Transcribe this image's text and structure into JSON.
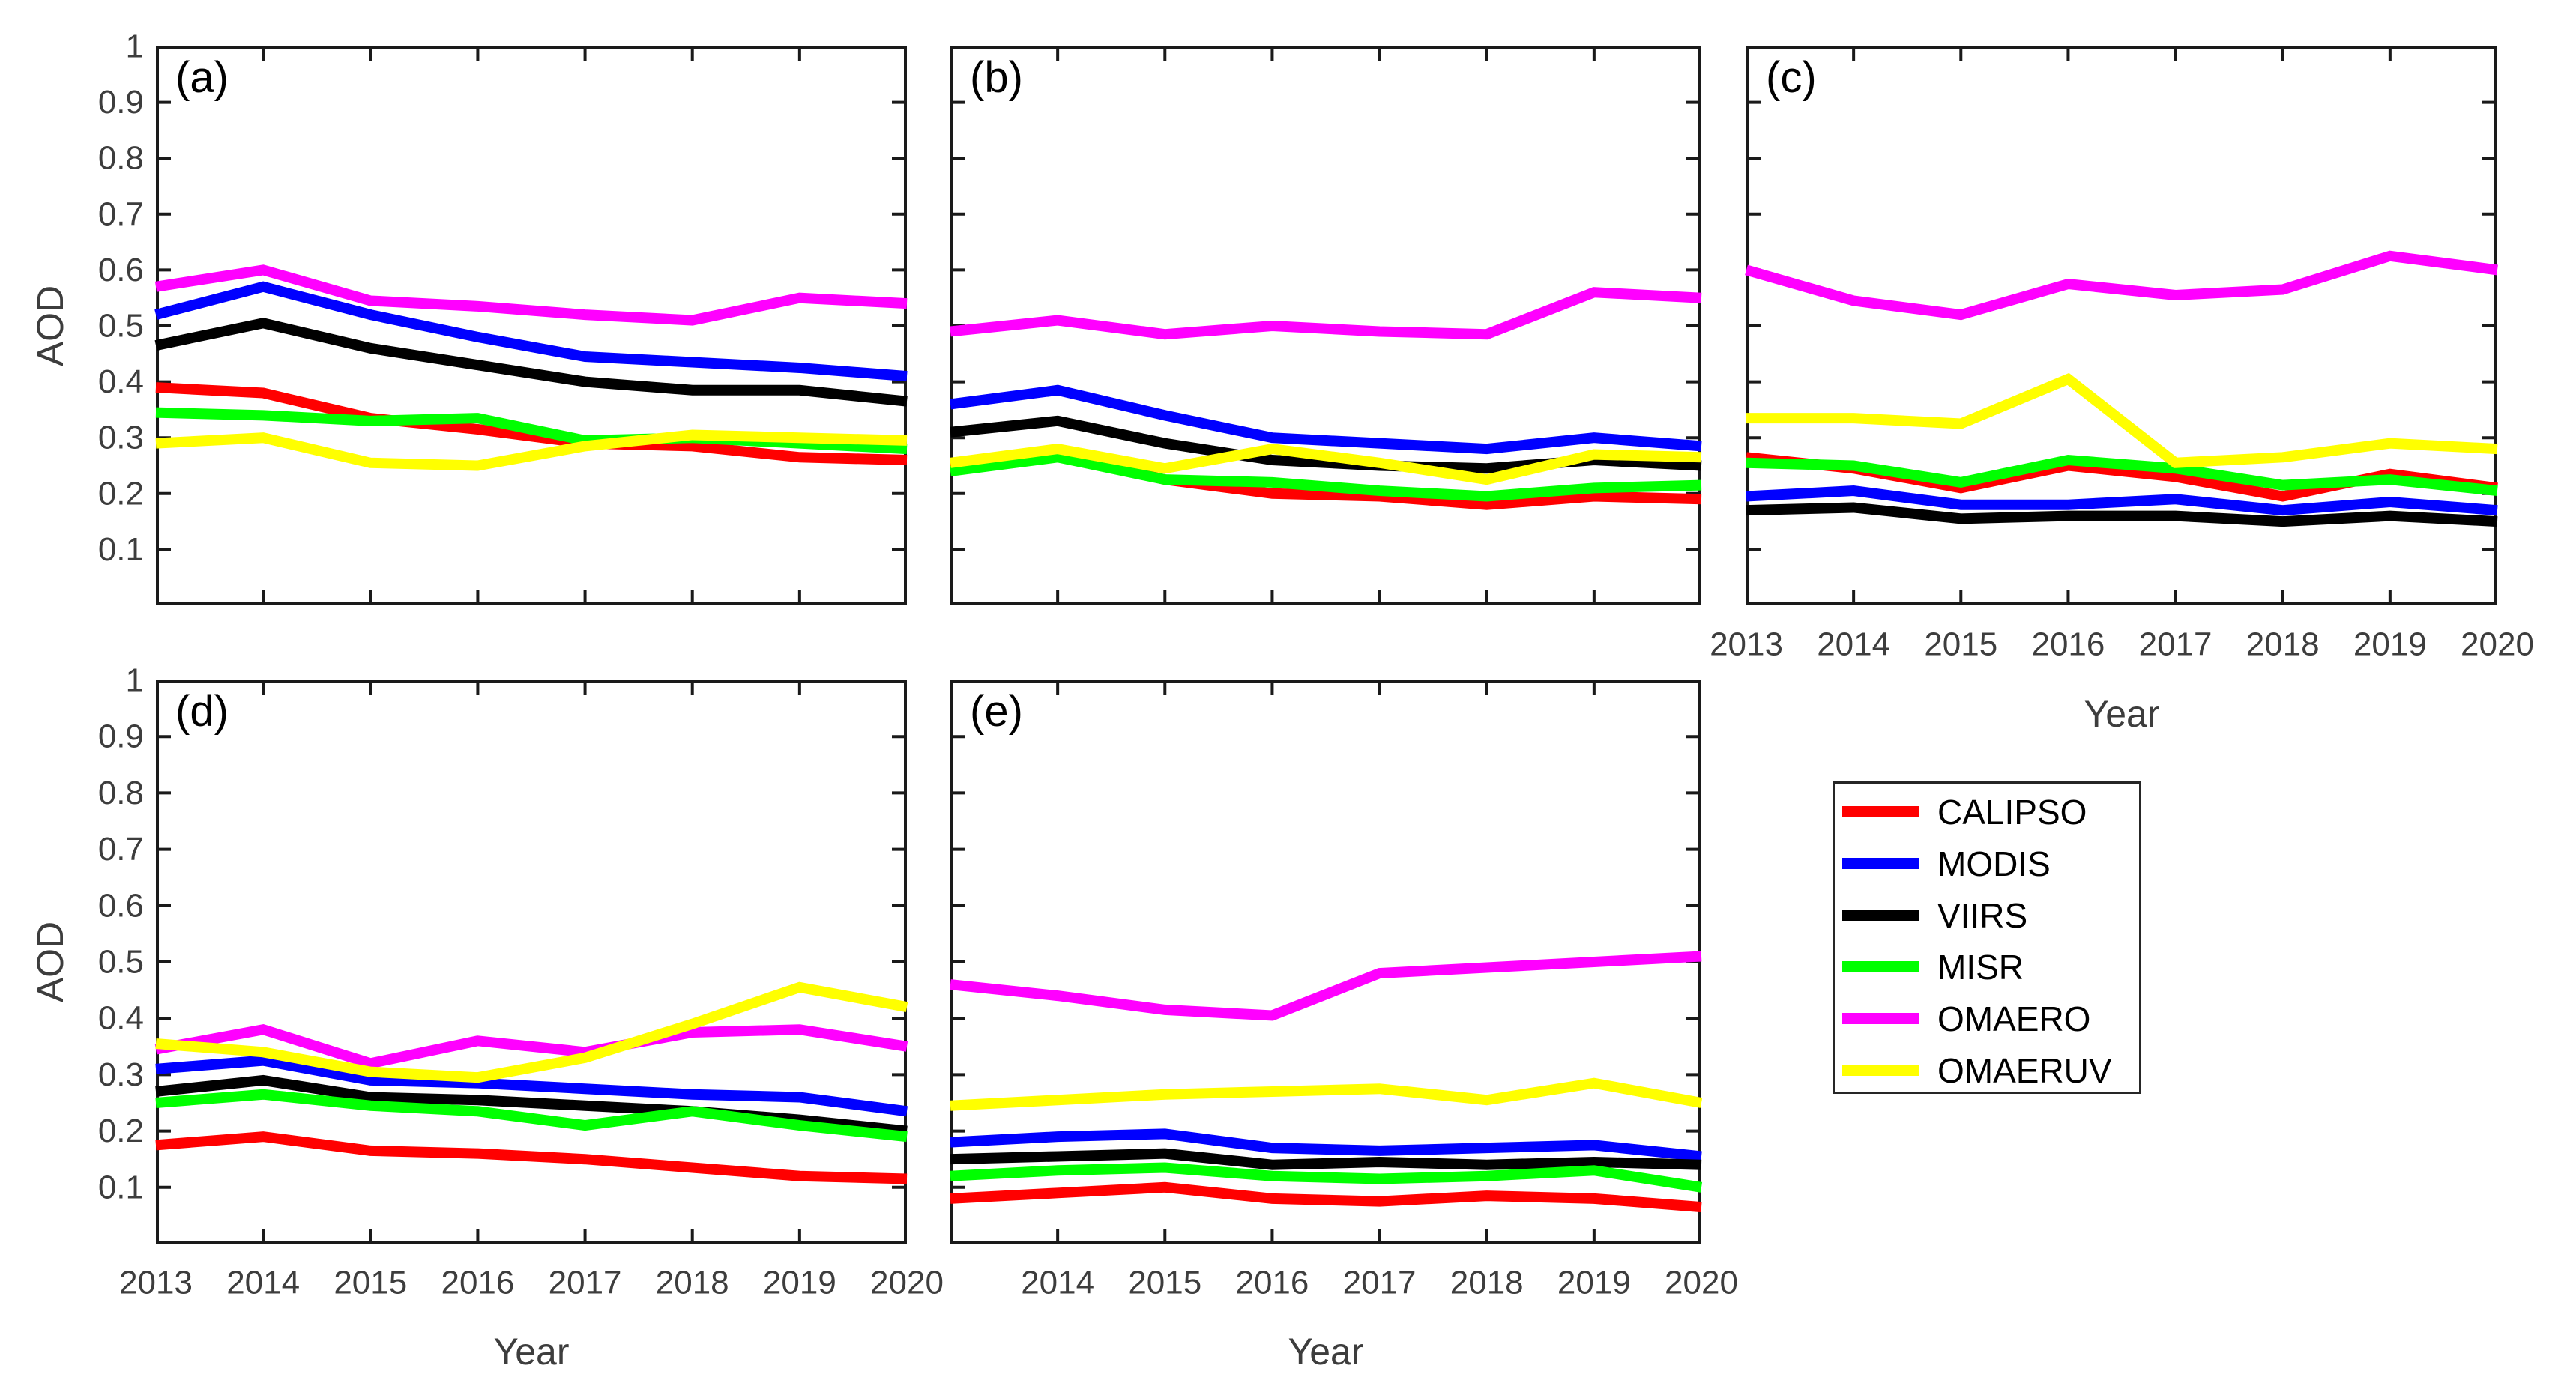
{
  "figure": {
    "ylabel": "AOD",
    "xlabel": "Year",
    "y_tick_labels": [
      "1",
      "0.9",
      "0.8",
      "0.7",
      "0.6",
      "0.5",
      "0.4",
      "0.3",
      "0.2",
      "0.1"
    ],
    "axis_color": "#1a1a1a",
    "tick_label_color": "#3d3d3d",
    "background": "#ffffff"
  },
  "legend": {
    "border_color": "#262626",
    "items": [
      {
        "label": "CALIPSO",
        "color": "#ff0000"
      },
      {
        "label": "MODIS",
        "color": "#0000ff"
      },
      {
        "label": "VIIRS",
        "color": "#000000"
      },
      {
        "label": "MISR",
        "color": "#00ff00"
      },
      {
        "label": "OMAERO",
        "color": "#ff00ff"
      },
      {
        "label": "OMAERUV",
        "color": "#ffff00"
      }
    ]
  },
  "chart_data": [
    {
      "type": "line",
      "panel_label": "(a)",
      "x": [
        2013,
        2014,
        2015,
        2016,
        2017,
        2018,
        2019,
        2020
      ],
      "xlim": [
        2013,
        2020
      ],
      "ylim": [
        0,
        1
      ],
      "grid": false,
      "ytick_labels_visible": true,
      "xlabel_visible": false,
      "x_tick_labels": [],
      "series": [
        {
          "name": "CALIPSO",
          "color": "#ff0000",
          "values": [
            0.39,
            0.38,
            0.335,
            0.315,
            0.29,
            0.285,
            0.265,
            0.26
          ]
        },
        {
          "name": "MODIS",
          "color": "#0000ff",
          "values": [
            0.52,
            0.57,
            0.52,
            0.48,
            0.445,
            0.435,
            0.425,
            0.41
          ]
        },
        {
          "name": "VIIRS",
          "color": "#000000",
          "values": [
            0.465,
            0.505,
            0.46,
            0.43,
            0.4,
            0.385,
            0.385,
            0.365
          ]
        },
        {
          "name": "MISR",
          "color": "#00ff00",
          "values": [
            0.345,
            0.34,
            0.33,
            0.335,
            0.295,
            0.3,
            0.29,
            0.28
          ]
        },
        {
          "name": "OMAERO",
          "color": "#ff00ff",
          "values": [
            0.57,
            0.6,
            0.545,
            0.535,
            0.52,
            0.51,
            0.55,
            0.54
          ]
        },
        {
          "name": "OMAERUV",
          "color": "#ffff00",
          "values": [
            0.29,
            0.3,
            0.255,
            0.25,
            0.285,
            0.305,
            0.3,
            0.295
          ]
        }
      ]
    },
    {
      "type": "line",
      "panel_label": "(b)",
      "x": [
        2013,
        2014,
        2015,
        2016,
        2017,
        2018,
        2019,
        2020
      ],
      "xlim": [
        2013,
        2020
      ],
      "ylim": [
        0,
        1
      ],
      "grid": false,
      "ytick_labels_visible": false,
      "xlabel_visible": false,
      "x_tick_labels": [],
      "series": [
        {
          "name": "CALIPSO",
          "color": "#ff0000",
          "values": [
            0.25,
            0.27,
            0.225,
            0.2,
            0.195,
            0.18,
            0.195,
            0.19
          ]
        },
        {
          "name": "MODIS",
          "color": "#0000ff",
          "values": [
            0.36,
            0.385,
            0.34,
            0.3,
            0.29,
            0.28,
            0.3,
            0.285
          ]
        },
        {
          "name": "VIIRS",
          "color": "#000000",
          "values": [
            0.31,
            0.33,
            0.29,
            0.26,
            0.25,
            0.245,
            0.26,
            0.25
          ]
        },
        {
          "name": "MISR",
          "color": "#00ff00",
          "values": [
            0.24,
            0.265,
            0.225,
            0.22,
            0.205,
            0.195,
            0.21,
            0.215
          ]
        },
        {
          "name": "OMAERO",
          "color": "#ff00ff",
          "values": [
            0.49,
            0.51,
            0.485,
            0.5,
            0.49,
            0.485,
            0.56,
            0.55
          ]
        },
        {
          "name": "OMAERUV",
          "color": "#ffff00",
          "values": [
            0.255,
            0.28,
            0.245,
            0.28,
            0.255,
            0.225,
            0.27,
            0.265
          ]
        }
      ]
    },
    {
      "type": "line",
      "panel_label": "(c)",
      "x": [
        2013,
        2014,
        2015,
        2016,
        2017,
        2018,
        2019,
        2020
      ],
      "xlim": [
        2013,
        2020
      ],
      "ylim": [
        0,
        1
      ],
      "grid": false,
      "ytick_labels_visible": false,
      "xlabel_visible": true,
      "x_tick_labels": [
        "2013",
        "2014",
        "2015",
        "2016",
        "2017",
        "2018",
        "2019",
        "2020"
      ],
      "series": [
        {
          "name": "CALIPSO",
          "color": "#ff0000",
          "values": [
            0.265,
            0.245,
            0.21,
            0.25,
            0.23,
            0.195,
            0.235,
            0.21
          ]
        },
        {
          "name": "MODIS",
          "color": "#0000ff",
          "values": [
            0.195,
            0.205,
            0.18,
            0.18,
            0.19,
            0.17,
            0.185,
            0.17
          ]
        },
        {
          "name": "VIIRS",
          "color": "#000000",
          "values": [
            0.17,
            0.175,
            0.155,
            0.16,
            0.16,
            0.15,
            0.16,
            0.15
          ]
        },
        {
          "name": "MISR",
          "color": "#00ff00",
          "values": [
            0.255,
            0.25,
            0.22,
            0.26,
            0.245,
            0.215,
            0.225,
            0.205
          ]
        },
        {
          "name": "OMAERO",
          "color": "#ff00ff",
          "values": [
            0.6,
            0.545,
            0.52,
            0.575,
            0.555,
            0.565,
            0.625,
            0.6
          ]
        },
        {
          "name": "OMAERUV",
          "color": "#ffff00",
          "values": [
            0.335,
            0.335,
            0.325,
            0.405,
            0.255,
            0.265,
            0.29,
            0.28
          ]
        }
      ]
    },
    {
      "type": "line",
      "panel_label": "(d)",
      "x": [
        2013,
        2014,
        2015,
        2016,
        2017,
        2018,
        2019,
        2020
      ],
      "xlim": [
        2013,
        2020
      ],
      "ylim": [
        0,
        1
      ],
      "grid": false,
      "ytick_labels_visible": true,
      "xlabel_visible": true,
      "x_tick_labels": [
        "2013",
        "2014",
        "2015",
        "2016",
        "2017",
        "2018",
        "2019",
        "2020"
      ],
      "series": [
        {
          "name": "CALIPSO",
          "color": "#ff0000",
          "values": [
            0.175,
            0.19,
            0.165,
            0.16,
            0.15,
            0.135,
            0.12,
            0.115
          ]
        },
        {
          "name": "MODIS",
          "color": "#0000ff",
          "values": [
            0.31,
            0.325,
            0.29,
            0.285,
            0.275,
            0.265,
            0.26,
            0.235
          ]
        },
        {
          "name": "VIIRS",
          "color": "#000000",
          "values": [
            0.27,
            0.29,
            0.26,
            0.255,
            0.245,
            0.235,
            0.22,
            0.2
          ]
        },
        {
          "name": "MISR",
          "color": "#00ff00",
          "values": [
            0.25,
            0.265,
            0.245,
            0.235,
            0.21,
            0.235,
            0.21,
            0.19
          ]
        },
        {
          "name": "OMAERO",
          "color": "#ff00ff",
          "values": [
            0.345,
            0.38,
            0.32,
            0.36,
            0.34,
            0.375,
            0.38,
            0.35
          ]
        },
        {
          "name": "OMAERUV",
          "color": "#ffff00",
          "values": [
            0.355,
            0.34,
            0.305,
            0.295,
            0.33,
            0.39,
            0.455,
            0.42
          ]
        }
      ]
    },
    {
      "type": "line",
      "panel_label": "(e)",
      "x": [
        2013,
        2014,
        2015,
        2016,
        2017,
        2018,
        2019,
        2020
      ],
      "xlim": [
        2013,
        2020
      ],
      "ylim": [
        0,
        1
      ],
      "grid": false,
      "ytick_labels_visible": false,
      "xlabel_visible": true,
      "x_tick_labels": [
        "",
        "2014",
        "2015",
        "2016",
        "2017",
        "2018",
        "2019",
        "2020"
      ],
      "series": [
        {
          "name": "CALIPSO",
          "color": "#ff0000",
          "values": [
            0.08,
            0.09,
            0.1,
            0.08,
            0.075,
            0.085,
            0.08,
            0.065
          ]
        },
        {
          "name": "MODIS",
          "color": "#0000ff",
          "values": [
            0.18,
            0.19,
            0.195,
            0.17,
            0.165,
            0.17,
            0.175,
            0.155
          ]
        },
        {
          "name": "VIIRS",
          "color": "#000000",
          "values": [
            0.15,
            0.155,
            0.16,
            0.14,
            0.145,
            0.14,
            0.145,
            0.14
          ]
        },
        {
          "name": "MISR",
          "color": "#00ff00",
          "values": [
            0.12,
            0.13,
            0.135,
            0.12,
            0.115,
            0.12,
            0.13,
            0.1
          ]
        },
        {
          "name": "OMAERO",
          "color": "#ff00ff",
          "values": [
            0.46,
            0.44,
            0.415,
            0.405,
            0.48,
            0.49,
            0.5,
            0.51
          ]
        },
        {
          "name": "OMAERUV",
          "color": "#ffff00",
          "values": [
            0.245,
            0.255,
            0.265,
            0.27,
            0.275,
            0.255,
            0.285,
            0.25
          ]
        }
      ]
    }
  ]
}
